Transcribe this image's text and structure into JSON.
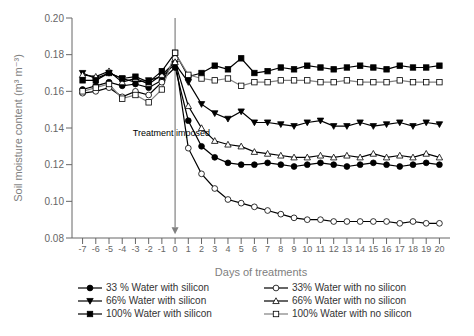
{
  "chart_data": {
    "type": "line",
    "xlabel": "Days of treatments",
    "ylabel": "Soil moisture content (m³ m⁻³)",
    "x": [
      -7,
      -6,
      -5,
      -4,
      -3,
      -2,
      -1,
      0,
      1,
      2,
      3,
      4,
      5,
      6,
      7,
      8,
      9,
      10,
      11,
      12,
      13,
      14,
      15,
      16,
      17,
      18,
      19,
      20
    ],
    "series": [
      {
        "name": "33 % Water with silicon",
        "color": "black",
        "marker": "filled_circle",
        "values": [
          0.161,
          0.163,
          0.165,
          0.163,
          0.164,
          0.162,
          0.166,
          0.173,
          0.144,
          0.13,
          0.124,
          0.121,
          0.12,
          0.12,
          0.121,
          0.12,
          0.119,
          0.12,
          0.121,
          0.12,
          0.119,
          0.12,
          0.121,
          0.12,
          0.119,
          0.12,
          0.121,
          0.12
        ]
      },
      {
        "name": "33% Water with no silicon",
        "color": "black",
        "marker": "open_circle",
        "values": [
          0.159,
          0.16,
          0.162,
          0.157,
          0.16,
          0.158,
          0.165,
          0.178,
          0.129,
          0.115,
          0.107,
          0.101,
          0.099,
          0.097,
          0.095,
          0.093,
          0.091,
          0.09,
          0.09,
          0.089,
          0.089,
          0.089,
          0.089,
          0.089,
          0.088,
          0.089,
          0.088,
          0.088
        ]
      },
      {
        "name": "66% Water with silicon",
        "color": "black",
        "marker": "filled_triangle_down",
        "values": [
          0.17,
          0.167,
          0.17,
          0.167,
          0.165,
          0.166,
          0.168,
          0.175,
          0.165,
          0.153,
          0.148,
          0.145,
          0.149,
          0.143,
          0.143,
          0.142,
          0.141,
          0.143,
          0.144,
          0.141,
          0.141,
          0.143,
          0.141,
          0.142,
          0.143,
          0.141,
          0.143,
          0.142
        ]
      },
      {
        "name": "66% Water with no silicon",
        "color": "black",
        "marker": "open_triangle_up",
        "values": [
          0.169,
          0.168,
          0.171,
          0.165,
          0.167,
          0.164,
          0.169,
          0.176,
          0.152,
          0.14,
          0.133,
          0.131,
          0.13,
          0.127,
          0.126,
          0.125,
          0.124,
          0.124,
          0.125,
          0.124,
          0.125,
          0.124,
          0.126,
          0.124,
          0.125,
          0.124,
          0.126,
          0.124
        ]
      },
      {
        "name": "100% Water with silicon",
        "color": "black",
        "marker": "filled_square",
        "values": [
          0.166,
          0.166,
          0.17,
          0.167,
          0.168,
          0.165,
          0.171,
          0.181,
          0.168,
          0.17,
          0.174,
          0.172,
          0.178,
          0.17,
          0.171,
          0.173,
          0.172,
          0.174,
          0.173,
          0.172,
          0.173,
          0.174,
          0.173,
          0.172,
          0.174,
          0.173,
          0.173,
          0.174
        ]
      },
      {
        "name": "100% Water with no silicon",
        "color": "gray",
        "marker": "open_square",
        "values": [
          0.16,
          0.162,
          0.164,
          0.156,
          0.158,
          0.154,
          0.161,
          0.181,
          0.169,
          0.167,
          0.166,
          0.167,
          0.163,
          0.165,
          0.165,
          0.166,
          0.166,
          0.166,
          0.165,
          0.165,
          0.166,
          0.165,
          0.165,
          0.165,
          0.166,
          0.165,
          0.165,
          0.165
        ]
      }
    ],
    "xlim": [
      -7.8,
      20.8
    ],
    "xticks": [
      -7,
      -6,
      -5,
      -4,
      -3,
      -2,
      -1,
      0,
      1,
      2,
      3,
      4,
      5,
      6,
      7,
      8,
      9,
      10,
      11,
      12,
      13,
      14,
      15,
      16,
      17,
      18,
      19,
      20
    ],
    "ylim": [
      0.08,
      0.2
    ],
    "yticks": [
      0.08,
      {
        "value": 0.1,
        "label": "0.10"
      },
      0.12,
      0.14,
      0.16,
      0.18,
      {
        "value": 0.2,
        "label": "0.20"
      }
    ],
    "grid": false,
    "legend": "bottom",
    "annotations": [
      {
        "text": "Treatment imposed",
        "x": -3.2,
        "y": 0.1355
      }
    ],
    "arrows": [
      {
        "x": 0,
        "y_start": 0.2,
        "y_end": 0.082
      }
    ]
  }
}
